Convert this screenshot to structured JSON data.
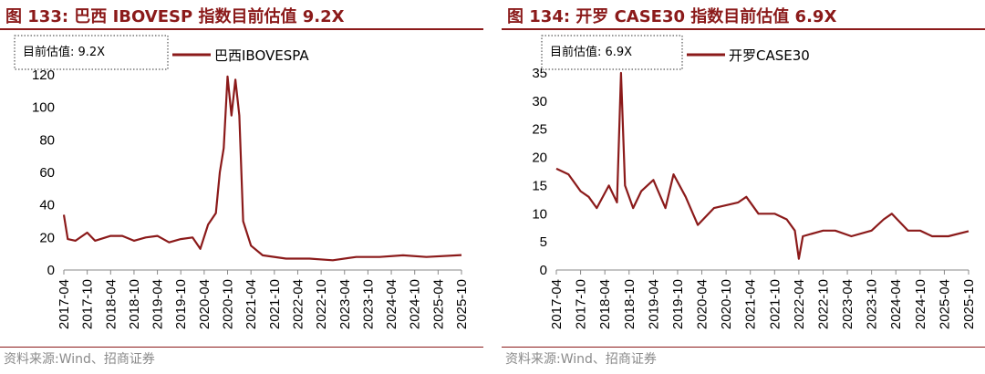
{
  "colors": {
    "series": "#8B1A1A",
    "title": "#8B1A1A"
  },
  "left": {
    "title": "图 133:  巴西 IBOVESP 指数目前估值 9.2X",
    "source": "资料来源:Wind、招商证券",
    "chart_data": {
      "type": "line",
      "series": [
        {
          "name": "巴西IBOVESPA",
          "points": [
            [
              "2017-04",
              34
            ],
            [
              "2017-05",
              19
            ],
            [
              "2017-07",
              18
            ],
            [
              "2017-10",
              23
            ],
            [
              "2017-12",
              18
            ],
            [
              "2018-04",
              21
            ],
            [
              "2018-07",
              21
            ],
            [
              "2018-10",
              18
            ],
            [
              "2019-01",
              20
            ],
            [
              "2019-04",
              21
            ],
            [
              "2019-07",
              17
            ],
            [
              "2019-10",
              19
            ],
            [
              "2020-01",
              20
            ],
            [
              "2020-03",
              13
            ],
            [
              "2020-05",
              28
            ],
            [
              "2020-07",
              35
            ],
            [
              "2020-08",
              60
            ],
            [
              "2020-09",
              75
            ],
            [
              "2020-10",
              119
            ],
            [
              "2020-11",
              95
            ],
            [
              "2020-12",
              117
            ],
            [
              "2021-01",
              95
            ],
            [
              "2021-02",
              30
            ],
            [
              "2021-04",
              15
            ],
            [
              "2021-07",
              9
            ],
            [
              "2022-01",
              7
            ],
            [
              "2022-07",
              7
            ],
            [
              "2023-01",
              6
            ],
            [
              "2023-07",
              8
            ],
            [
              "2024-01",
              8
            ],
            [
              "2024-07",
              9
            ],
            [
              "2025-01",
              8
            ],
            [
              "2025-10",
              9.2
            ]
          ]
        }
      ],
      "xticks": [
        "2017-04",
        "2017-10",
        "2018-04",
        "2018-10",
        "2019-04",
        "2019-10",
        "2020-04",
        "2020-10",
        "2021-04",
        "2021-10",
        "2022-04",
        "2022-10",
        "2023-04",
        "2023-10",
        "2024-04",
        "2024-10",
        "2025-04",
        "2025-10"
      ],
      "yticks": [
        0,
        20,
        40,
        60,
        80,
        100,
        120
      ],
      "ylim": [
        0,
        120
      ],
      "annotation": "目前估值:  9.2X",
      "legend": "top"
    }
  },
  "right": {
    "title": "图 134:  开罗 CASE30 指数目前估值 6.9X",
    "source": "资料来源:Wind、招商证券",
    "chart_data": {
      "type": "line",
      "series": [
        {
          "name": "开罗CASE30",
          "points": [
            [
              "2017-04",
              18
            ],
            [
              "2017-07",
              17
            ],
            [
              "2017-10",
              14
            ],
            [
              "2017-12",
              13
            ],
            [
              "2018-02",
              11
            ],
            [
              "2018-05",
              15
            ],
            [
              "2018-07",
              12
            ],
            [
              "2018-08",
              35
            ],
            [
              "2018-09",
              15
            ],
            [
              "2018-11",
              11
            ],
            [
              "2019-01",
              14
            ],
            [
              "2019-04",
              16
            ],
            [
              "2019-07",
              11
            ],
            [
              "2019-09",
              17
            ],
            [
              "2019-12",
              13
            ],
            [
              "2020-03",
              8
            ],
            [
              "2020-07",
              11
            ],
            [
              "2021-01",
              12
            ],
            [
              "2021-03",
              13
            ],
            [
              "2021-06",
              10
            ],
            [
              "2021-10",
              10
            ],
            [
              "2022-01",
              9
            ],
            [
              "2022-03",
              7
            ],
            [
              "2022-04",
              2
            ],
            [
              "2022-05",
              6
            ],
            [
              "2022-10",
              7
            ],
            [
              "2023-01",
              7
            ],
            [
              "2023-05",
              6
            ],
            [
              "2023-10",
              7
            ],
            [
              "2024-01",
              9
            ],
            [
              "2024-03",
              10
            ],
            [
              "2024-07",
              7
            ],
            [
              "2024-10",
              7
            ],
            [
              "2025-01",
              6
            ],
            [
              "2025-05",
              6
            ],
            [
              "2025-10",
              6.9
            ]
          ]
        }
      ],
      "xticks": [
        "2017-04",
        "2017-10",
        "2018-04",
        "2018-10",
        "2019-04",
        "2019-10",
        "2020-04",
        "2020-10",
        "2021-04",
        "2021-10",
        "2022-04",
        "2022-10",
        "2023-04",
        "2023-10",
        "2024-04",
        "2024-10",
        "2025-04",
        "2025-10"
      ],
      "yticks": [
        0,
        5,
        10,
        15,
        20,
        25,
        30,
        35
      ],
      "ylim": [
        0,
        35
      ],
      "annotation": "目前估值:  6.9X",
      "legend": "top"
    }
  }
}
